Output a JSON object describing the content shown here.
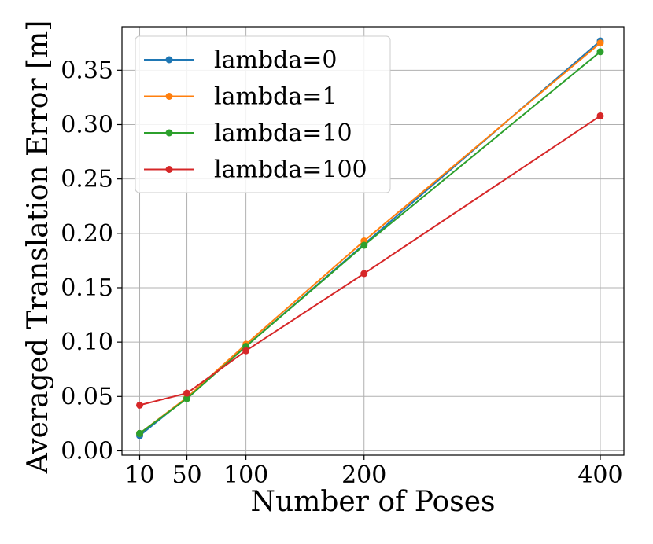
{
  "chart_data": {
    "type": "line",
    "title": "",
    "xlabel": "Number of Poses",
    "ylabel": "Averaged Translation Error [m]",
    "x": [
      10,
      50,
      100,
      200,
      400
    ],
    "xlim": [
      -5,
      420
    ],
    "ylim": [
      -0.004,
      0.39
    ],
    "xticks": [
      10,
      50,
      100,
      200,
      400
    ],
    "xtick_labels": [
      "10",
      "50",
      "100",
      "200",
      "400"
    ],
    "yticks": [
      0.0,
      0.05,
      0.1,
      0.15,
      0.2,
      0.25,
      0.3,
      0.35
    ],
    "ytick_labels": [
      "0.00",
      "0.05",
      "0.10",
      "0.15",
      "0.20",
      "0.25",
      "0.30",
      "0.35"
    ],
    "grid": true,
    "legend_position": "top-left",
    "series": [
      {
        "name": "lambda=0",
        "color": "#1f77b4",
        "values": [
          0.014,
          0.049,
          0.096,
          0.19,
          0.377
        ]
      },
      {
        "name": "lambda=1",
        "color": "#ff7f0e",
        "values": [
          0.016,
          0.049,
          0.098,
          0.193,
          0.375
        ]
      },
      {
        "name": "lambda=10",
        "color": "#2ca02c",
        "values": [
          0.016,
          0.048,
          0.096,
          0.189,
          0.367
        ]
      },
      {
        "name": "lambda=100",
        "color": "#d62728",
        "values": [
          0.042,
          0.053,
          0.092,
          0.163,
          0.308
        ]
      }
    ]
  }
}
